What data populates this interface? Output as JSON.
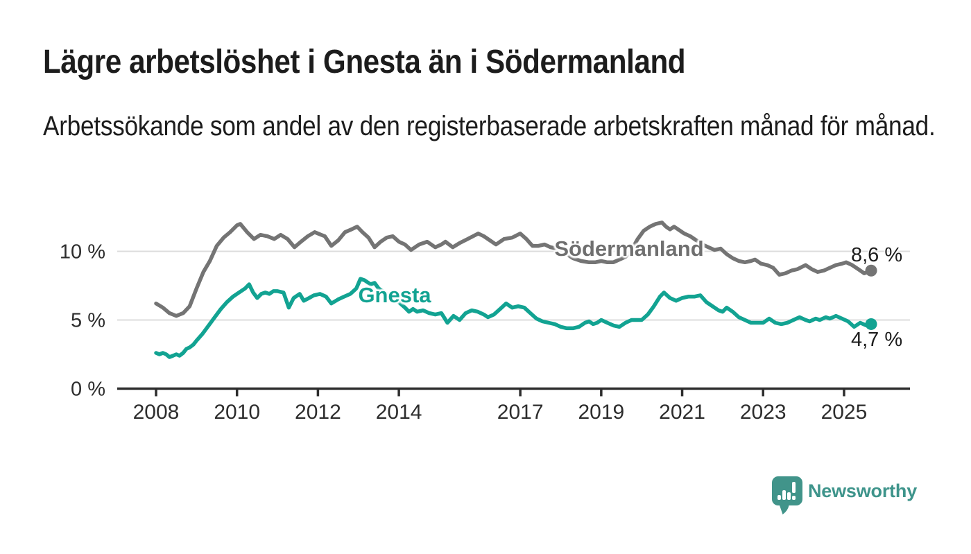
{
  "header": {
    "title": "Lägre arbetslöshet i Gnesta än i Södermanland",
    "subtitle": "Arbetssökande som andel av den registerbaserade arbetskraften månad för månad."
  },
  "colors": {
    "background": "#ffffff",
    "text": "#1c1c1c",
    "axis": "#2d2d2d",
    "tick_label": "#2d2d2d",
    "gridline": "#dcdcdc",
    "series_sodermanland": "#747474",
    "series_gnesta": "#12A392",
    "brand_teal": "#3E948B"
  },
  "chart_data": {
    "type": "line",
    "title": "Lägre arbetslöshet i Gnesta än i Södermanland",
    "subtitle": "Arbetssökande som andel av den registerbaserade arbetskraften månad för månad.",
    "xlabel": "",
    "ylabel": "",
    "unit": "%",
    "grid": "horizontal-only",
    "legend_position": "inline-labels-on-lines",
    "ylim": [
      0,
      12.8
    ],
    "xlim_years": [
      2007.1,
      2026.6
    ],
    "y_ticks": [
      {
        "value": 0,
        "label": "0 %"
      },
      {
        "value": 5,
        "label": "5 %"
      },
      {
        "value": 10,
        "label": "10 %"
      }
    ],
    "x_ticks": [
      {
        "value": 2008,
        "label": "2008"
      },
      {
        "value": 2010,
        "label": "2010"
      },
      {
        "value": 2012,
        "label": "2012"
      },
      {
        "value": 2014,
        "label": "2014"
      },
      {
        "value": 2017,
        "label": "2017"
      },
      {
        "value": 2019,
        "label": "2019"
      },
      {
        "value": 2021,
        "label": "2021"
      },
      {
        "value": 2023,
        "label": "2023"
      },
      {
        "value": 2025,
        "label": "2025"
      }
    ],
    "series": [
      {
        "name": "Södermanland",
        "color": "#747474",
        "end_value": 8.6,
        "end_label": "8,6 %",
        "points": [
          [
            2008.0,
            6.2
          ],
          [
            2008.17,
            5.9
          ],
          [
            2008.33,
            5.5
          ],
          [
            2008.5,
            5.3
          ],
          [
            2008.67,
            5.5
          ],
          [
            2008.83,
            6.0
          ],
          [
            2009.0,
            7.3
          ],
          [
            2009.17,
            8.5
          ],
          [
            2009.33,
            9.3
          ],
          [
            2009.5,
            10.4
          ],
          [
            2009.67,
            11.0
          ],
          [
            2009.83,
            11.4
          ],
          [
            2010.0,
            11.9
          ],
          [
            2010.08,
            12.0
          ],
          [
            2010.25,
            11.4
          ],
          [
            2010.42,
            10.9
          ],
          [
            2010.58,
            11.2
          ],
          [
            2010.75,
            11.1
          ],
          [
            2010.92,
            10.9
          ],
          [
            2011.08,
            11.2
          ],
          [
            2011.25,
            10.9
          ],
          [
            2011.42,
            10.3
          ],
          [
            2011.58,
            10.7
          ],
          [
            2011.75,
            11.1
          ],
          [
            2011.92,
            11.4
          ],
          [
            2012.08,
            11.2
          ],
          [
            2012.17,
            11.1
          ],
          [
            2012.33,
            10.4
          ],
          [
            2012.5,
            10.8
          ],
          [
            2012.67,
            11.4
          ],
          [
            2012.83,
            11.6
          ],
          [
            2012.97,
            11.8
          ],
          [
            2013.1,
            11.4
          ],
          [
            2013.25,
            11.0
          ],
          [
            2013.4,
            10.3
          ],
          [
            2013.55,
            10.7
          ],
          [
            2013.7,
            11.0
          ],
          [
            2013.85,
            11.1
          ],
          [
            2014.0,
            10.7
          ],
          [
            2014.15,
            10.5
          ],
          [
            2014.3,
            10.1
          ],
          [
            2014.5,
            10.5
          ],
          [
            2014.7,
            10.7
          ],
          [
            2014.9,
            10.3
          ],
          [
            2015.05,
            10.5
          ],
          [
            2015.15,
            10.7
          ],
          [
            2015.33,
            10.3
          ],
          [
            2015.5,
            10.6
          ],
          [
            2015.7,
            10.9
          ],
          [
            2015.96,
            11.3
          ],
          [
            2016.1,
            11.1
          ],
          [
            2016.25,
            10.8
          ],
          [
            2016.4,
            10.5
          ],
          [
            2016.6,
            10.9
          ],
          [
            2016.8,
            11.0
          ],
          [
            2017.0,
            11.3
          ],
          [
            2017.15,
            10.9
          ],
          [
            2017.3,
            10.4
          ],
          [
            2017.45,
            10.4
          ],
          [
            2017.6,
            10.5
          ],
          [
            2017.75,
            10.3
          ],
          [
            2017.9,
            10.2
          ],
          [
            2018.1,
            9.9
          ],
          [
            2018.3,
            9.5
          ],
          [
            2018.5,
            9.3
          ],
          [
            2018.7,
            9.2
          ],
          [
            2018.85,
            9.2
          ],
          [
            2019.0,
            9.3
          ],
          [
            2019.15,
            9.2
          ],
          [
            2019.3,
            9.2
          ],
          [
            2019.45,
            9.4
          ],
          [
            2019.6,
            9.6
          ],
          [
            2019.75,
            10.1
          ],
          [
            2019.9,
            10.9
          ],
          [
            2020.05,
            11.5
          ],
          [
            2020.2,
            11.8
          ],
          [
            2020.35,
            12.0
          ],
          [
            2020.5,
            12.1
          ],
          [
            2020.6,
            11.8
          ],
          [
            2020.7,
            11.6
          ],
          [
            2020.8,
            11.8
          ],
          [
            2020.9,
            11.6
          ],
          [
            2021.05,
            11.3
          ],
          [
            2021.2,
            11.1
          ],
          [
            2021.35,
            10.8
          ],
          [
            2021.5,
            10.5
          ],
          [
            2021.65,
            10.3
          ],
          [
            2021.8,
            10.1
          ],
          [
            2021.95,
            10.2
          ],
          [
            2022.1,
            9.8
          ],
          [
            2022.25,
            9.5
          ],
          [
            2022.4,
            9.3
          ],
          [
            2022.55,
            9.2
          ],
          [
            2022.7,
            9.3
          ],
          [
            2022.8,
            9.4
          ],
          [
            2022.95,
            9.1
          ],
          [
            2023.1,
            9.0
          ],
          [
            2023.25,
            8.8
          ],
          [
            2023.4,
            8.3
          ],
          [
            2023.55,
            8.4
          ],
          [
            2023.7,
            8.6
          ],
          [
            2023.85,
            8.7
          ],
          [
            2024.05,
            9.0
          ],
          [
            2024.2,
            8.7
          ],
          [
            2024.35,
            8.5
          ],
          [
            2024.5,
            8.6
          ],
          [
            2024.65,
            8.8
          ],
          [
            2024.8,
            9.0
          ],
          [
            2024.95,
            9.1
          ],
          [
            2025.05,
            9.2
          ],
          [
            2025.2,
            9.0
          ],
          [
            2025.35,
            8.7
          ],
          [
            2025.5,
            8.4
          ],
          [
            2025.67,
            8.6
          ]
        ]
      },
      {
        "name": "Gnesta",
        "color": "#12A392",
        "end_value": 4.7,
        "end_label": "4,7 %",
        "points": [
          [
            2008.0,
            2.6
          ],
          [
            2008.08,
            2.5
          ],
          [
            2008.17,
            2.6
          ],
          [
            2008.25,
            2.5
          ],
          [
            2008.33,
            2.3
          ],
          [
            2008.42,
            2.4
          ],
          [
            2008.5,
            2.5
          ],
          [
            2008.58,
            2.4
          ],
          [
            2008.67,
            2.6
          ],
          [
            2008.75,
            2.9
          ],
          [
            2008.83,
            3.0
          ],
          [
            2008.92,
            3.2
          ],
          [
            2009.0,
            3.5
          ],
          [
            2009.15,
            4.0
          ],
          [
            2009.3,
            4.6
          ],
          [
            2009.45,
            5.2
          ],
          [
            2009.6,
            5.8
          ],
          [
            2009.75,
            6.3
          ],
          [
            2009.9,
            6.7
          ],
          [
            2010.05,
            7.0
          ],
          [
            2010.2,
            7.3
          ],
          [
            2010.3,
            7.6
          ],
          [
            2010.4,
            7.0
          ],
          [
            2010.5,
            6.6
          ],
          [
            2010.6,
            6.9
          ],
          [
            2010.7,
            7.0
          ],
          [
            2010.8,
            6.9
          ],
          [
            2010.9,
            7.1
          ],
          [
            2011.0,
            7.1
          ],
          [
            2011.15,
            7.0
          ],
          [
            2011.28,
            5.9
          ],
          [
            2011.4,
            6.6
          ],
          [
            2011.55,
            6.9
          ],
          [
            2011.65,
            6.4
          ],
          [
            2011.78,
            6.6
          ],
          [
            2011.9,
            6.8
          ],
          [
            2012.05,
            6.9
          ],
          [
            2012.2,
            6.7
          ],
          [
            2012.33,
            6.2
          ],
          [
            2012.5,
            6.5
          ],
          [
            2012.65,
            6.7
          ],
          [
            2012.8,
            6.9
          ],
          [
            2012.95,
            7.3
          ],
          [
            2013.05,
            8.0
          ],
          [
            2013.15,
            7.9
          ],
          [
            2013.3,
            7.6
          ],
          [
            2013.4,
            7.7
          ],
          [
            2013.5,
            7.3
          ],
          [
            2013.65,
            7.0
          ],
          [
            2013.8,
            6.7
          ],
          [
            2014.0,
            6.3
          ],
          [
            2014.15,
            5.9
          ],
          [
            2014.25,
            5.6
          ],
          [
            2014.35,
            5.8
          ],
          [
            2014.45,
            5.6
          ],
          [
            2014.6,
            5.7
          ],
          [
            2014.75,
            5.5
          ],
          [
            2014.9,
            5.4
          ],
          [
            2015.05,
            5.5
          ],
          [
            2015.2,
            4.8
          ],
          [
            2015.35,
            5.3
          ],
          [
            2015.5,
            5.0
          ],
          [
            2015.65,
            5.5
          ],
          [
            2015.8,
            5.7
          ],
          [
            2015.95,
            5.6
          ],
          [
            2016.1,
            5.4
          ],
          [
            2016.2,
            5.2
          ],
          [
            2016.35,
            5.4
          ],
          [
            2016.5,
            5.8
          ],
          [
            2016.65,
            6.2
          ],
          [
            2016.8,
            5.9
          ],
          [
            2016.95,
            6.0
          ],
          [
            2017.1,
            5.9
          ],
          [
            2017.25,
            5.5
          ],
          [
            2017.4,
            5.1
          ],
          [
            2017.55,
            4.9
          ],
          [
            2017.7,
            4.8
          ],
          [
            2017.85,
            4.7
          ],
          [
            2018.0,
            4.5
          ],
          [
            2018.15,
            4.4
          ],
          [
            2018.3,
            4.4
          ],
          [
            2018.45,
            4.5
          ],
          [
            2018.6,
            4.8
          ],
          [
            2018.7,
            4.9
          ],
          [
            2018.8,
            4.7
          ],
          [
            2018.9,
            4.8
          ],
          [
            2019.0,
            5.0
          ],
          [
            2019.15,
            4.8
          ],
          [
            2019.3,
            4.6
          ],
          [
            2019.45,
            4.5
          ],
          [
            2019.6,
            4.8
          ],
          [
            2019.75,
            5.0
          ],
          [
            2019.9,
            5.0
          ],
          [
            2020.0,
            5.0
          ],
          [
            2020.15,
            5.4
          ],
          [
            2020.3,
            6.0
          ],
          [
            2020.45,
            6.7
          ],
          [
            2020.55,
            7.0
          ],
          [
            2020.7,
            6.6
          ],
          [
            2020.85,
            6.4
          ],
          [
            2021.0,
            6.6
          ],
          [
            2021.15,
            6.7
          ],
          [
            2021.3,
            6.7
          ],
          [
            2021.45,
            6.8
          ],
          [
            2021.6,
            6.3
          ],
          [
            2021.75,
            6.0
          ],
          [
            2021.9,
            5.7
          ],
          [
            2022.0,
            5.6
          ],
          [
            2022.1,
            5.9
          ],
          [
            2022.25,
            5.6
          ],
          [
            2022.4,
            5.2
          ],
          [
            2022.55,
            5.0
          ],
          [
            2022.7,
            4.8
          ],
          [
            2022.85,
            4.8
          ],
          [
            2023.0,
            4.8
          ],
          [
            2023.15,
            5.1
          ],
          [
            2023.3,
            4.8
          ],
          [
            2023.45,
            4.7
          ],
          [
            2023.6,
            4.8
          ],
          [
            2023.75,
            5.0
          ],
          [
            2023.9,
            5.2
          ],
          [
            2024.05,
            5.0
          ],
          [
            2024.15,
            4.9
          ],
          [
            2024.3,
            5.1
          ],
          [
            2024.4,
            5.0
          ],
          [
            2024.55,
            5.2
          ],
          [
            2024.65,
            5.1
          ],
          [
            2024.8,
            5.3
          ],
          [
            2024.95,
            5.1
          ],
          [
            2025.1,
            4.9
          ],
          [
            2025.25,
            4.5
          ],
          [
            2025.4,
            4.8
          ],
          [
            2025.55,
            4.6
          ],
          [
            2025.67,
            4.7
          ]
        ]
      }
    ]
  },
  "footer": {
    "brand": "Newsworthy",
    "logo_icon": "newsworthy-pin-barchart-icon"
  }
}
